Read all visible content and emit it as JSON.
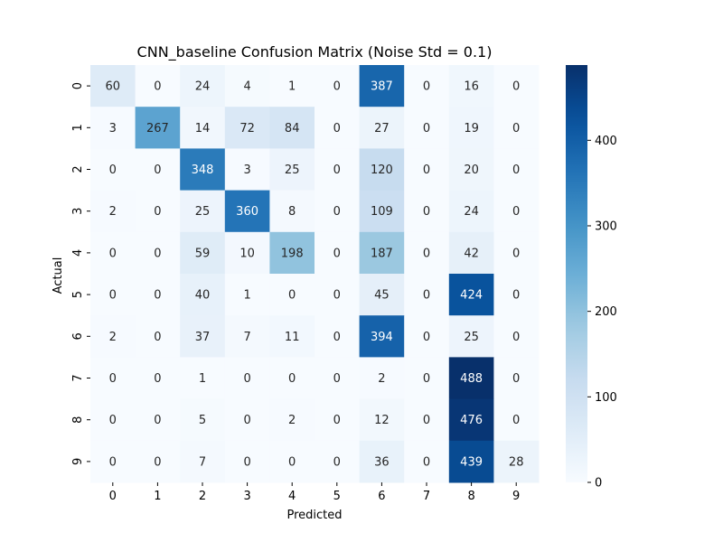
{
  "chart_data": {
    "type": "heatmap",
    "title": "CNN_baseline Confusion Matrix (Noise Std = 0.1)",
    "xlabel": "Predicted",
    "ylabel": "Actual",
    "x_categories": [
      "0",
      "1",
      "2",
      "3",
      "4",
      "5",
      "6",
      "7",
      "8",
      "9"
    ],
    "y_categories": [
      "0",
      "1",
      "2",
      "3",
      "4",
      "5",
      "6",
      "7",
      "8",
      "9"
    ],
    "values": [
      [
        60,
        0,
        24,
        4,
        1,
        0,
        387,
        0,
        16,
        0
      ],
      [
        3,
        267,
        14,
        72,
        84,
        0,
        27,
        0,
        19,
        0
      ],
      [
        0,
        0,
        348,
        3,
        25,
        0,
        120,
        0,
        20,
        0
      ],
      [
        2,
        0,
        25,
        360,
        8,
        0,
        109,
        0,
        24,
        0
      ],
      [
        0,
        0,
        59,
        10,
        198,
        0,
        187,
        0,
        42,
        0
      ],
      [
        0,
        0,
        40,
        1,
        0,
        0,
        45,
        0,
        424,
        0
      ],
      [
        2,
        0,
        37,
        7,
        11,
        0,
        394,
        0,
        25,
        0
      ],
      [
        0,
        0,
        1,
        0,
        0,
        0,
        2,
        0,
        488,
        0
      ],
      [
        0,
        0,
        5,
        0,
        2,
        0,
        12,
        0,
        476,
        0
      ],
      [
        0,
        0,
        7,
        0,
        0,
        0,
        36,
        0,
        439,
        28
      ]
    ],
    "colormap": "Blues",
    "colorbar": {
      "min": 0,
      "max": 488,
      "ticks": [
        0,
        100,
        200,
        300,
        400
      ]
    },
    "colors": {
      "low": "#f7fbff",
      "high": "#08306b",
      "text_dark": "#262626",
      "text_light": "#ffffff"
    },
    "annotations": true,
    "grid": false
  }
}
